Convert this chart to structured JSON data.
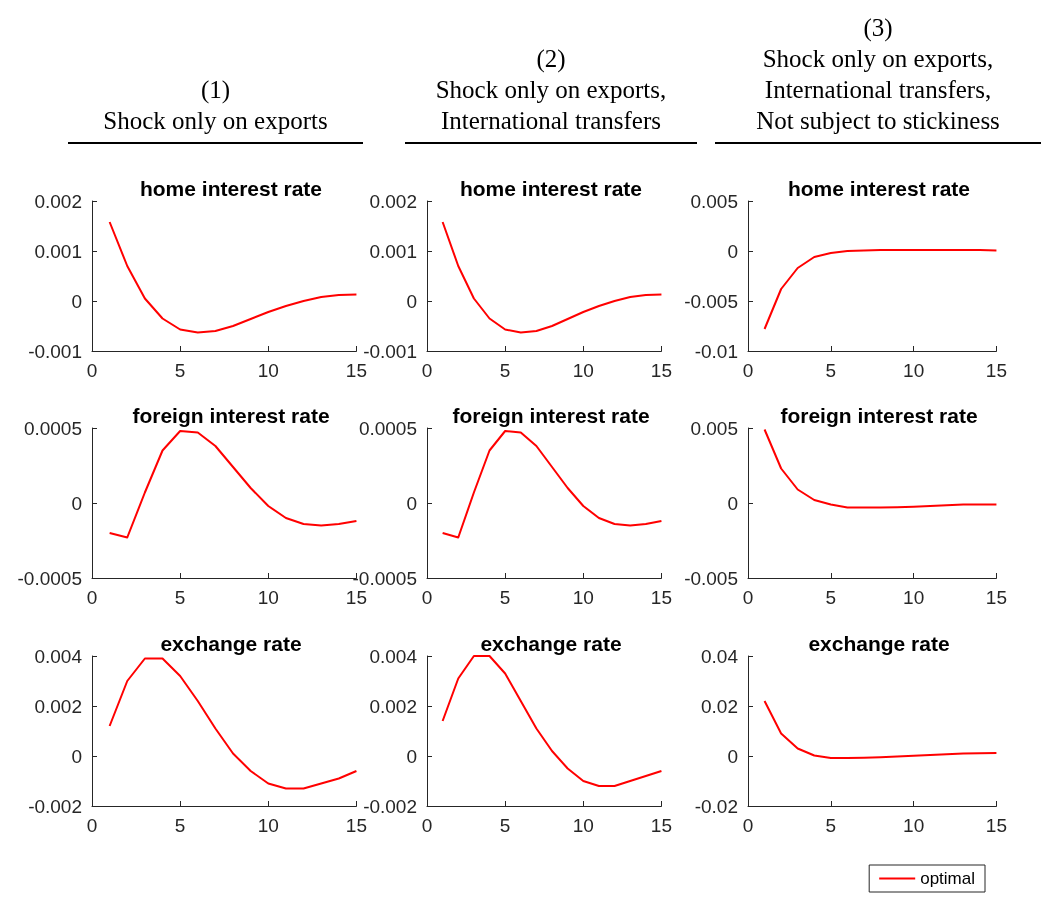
{
  "chart_data": [
    {
      "type": "line",
      "subtitle": "(1)\nShock only on exports",
      "title": "home interest rate",
      "x": [
        1,
        2,
        3,
        4,
        5,
        6,
        7,
        8,
        9,
        10,
        11,
        12,
        13,
        14,
        15
      ],
      "series": [
        {
          "color": "#ff0000",
          "values": [
            0.00158,
            0.0007,
            5e-05,
            -0.00035,
            -0.00057,
            -0.00063,
            -0.0006,
            -0.0005,
            -0.00036,
            -0.00022,
            -0.0001,
            0,
            8e-05,
            0.00012,
            0.00013
          ]
        }
      ],
      "xlim": [
        0,
        15
      ],
      "xticks": [
        0,
        5,
        10,
        15
      ],
      "ylim": [
        -0.001,
        0.002
      ],
      "yticks": [
        -0.001,
        0,
        0.001,
        0.002
      ],
      "grid": false,
      "marker": "none",
      "line_style": "solid",
      "legend": false
    },
    {
      "type": "line",
      "subtitle": "(2)\nShock only on exports,\nInternational transfers",
      "title": "home interest rate",
      "x": [
        1,
        2,
        3,
        4,
        5,
        6,
        7,
        8,
        9,
        10,
        11,
        12,
        13,
        14,
        15
      ],
      "series": [
        {
          "color": "#ff0000",
          "values": [
            0.00158,
            0.0007,
            5e-05,
            -0.00035,
            -0.00057,
            -0.00063,
            -0.0006,
            -0.0005,
            -0.00036,
            -0.00022,
            -0.0001,
            0,
            8e-05,
            0.00012,
            0.00013
          ]
        }
      ],
      "xlim": [
        0,
        15
      ],
      "xticks": [
        0,
        5,
        10,
        15
      ],
      "ylim": [
        -0.001,
        0.002
      ],
      "yticks": [
        -0.001,
        0,
        0.001,
        0.002
      ],
      "grid": false,
      "marker": "none",
      "line_style": "solid",
      "legend": false
    },
    {
      "type": "line",
      "subtitle": "(3)\nShock only on exports,\nInternational transfers,\nNot subject to stickiness",
      "title": "home interest rate",
      "x": [
        1,
        2,
        3,
        4,
        5,
        6,
        7,
        8,
        9,
        10,
        11,
        12,
        13,
        14,
        15
      ],
      "series": [
        {
          "color": "#ff0000",
          "values": [
            -0.0078,
            -0.0038,
            -0.0017,
            -0.0006,
            -0.0002,
            0,
            5e-05,
            0.0001,
            0.0001,
            0.0001,
            0.0001,
            0.0001,
            0.0001,
            0.0001,
            5e-05
          ]
        }
      ],
      "xlim": [
        0,
        15
      ],
      "xticks": [
        0,
        5,
        10,
        15
      ],
      "ylim": [
        -0.01,
        0.005
      ],
      "yticks": [
        -0.01,
        -0.005,
        0,
        0.005
      ],
      "grid": false,
      "marker": "none",
      "line_style": "solid",
      "legend": false
    },
    {
      "type": "line",
      "title": "foreign interest rate",
      "x": [
        1,
        2,
        3,
        4,
        5,
        6,
        7,
        8,
        9,
        10,
        11,
        12,
        13,
        14,
        15
      ],
      "series": [
        {
          "color": "#ff0000",
          "values": [
            -0.0002,
            -0.00023,
            7e-05,
            0.00035,
            0.00048,
            0.00047,
            0.00038,
            0.00024,
            0.0001,
            -2e-05,
            -0.0001,
            -0.00014,
            -0.00015,
            -0.00014,
            -0.00012
          ]
        }
      ],
      "xlim": [
        0,
        15
      ],
      "xticks": [
        0,
        5,
        10,
        15
      ],
      "ylim": [
        -0.0005,
        0.0005
      ],
      "yticks": [
        -0.0005,
        0,
        0.0005
      ],
      "grid": false,
      "marker": "none",
      "line_style": "solid",
      "legend": false
    },
    {
      "type": "line",
      "title": "foreign interest rate",
      "x": [
        1,
        2,
        3,
        4,
        5,
        6,
        7,
        8,
        9,
        10,
        11,
        12,
        13,
        14,
        15
      ],
      "series": [
        {
          "color": "#ff0000",
          "values": [
            -0.0002,
            -0.00023,
            7e-05,
            0.00035,
            0.00048,
            0.00047,
            0.00038,
            0.00024,
            0.0001,
            -2e-05,
            -0.0001,
            -0.00014,
            -0.00015,
            -0.00014,
            -0.00012
          ]
        }
      ],
      "xlim": [
        0,
        15
      ],
      "xticks": [
        0,
        5,
        10,
        15
      ],
      "ylim": [
        -0.0005,
        0.0005
      ],
      "yticks": [
        -0.0005,
        0,
        0.0005
      ],
      "grid": false,
      "marker": "none",
      "line_style": "solid",
      "legend": false
    },
    {
      "type": "line",
      "title": "foreign interest rate",
      "x": [
        1,
        2,
        3,
        4,
        5,
        6,
        7,
        8,
        9,
        10,
        11,
        12,
        13,
        14,
        15
      ],
      "series": [
        {
          "color": "#ff0000",
          "values": [
            0.0049,
            0.0023,
            0.0009,
            0.0002,
            -0.0001,
            -0.0003,
            -0.0003,
            -0.0003,
            -0.00028,
            -0.00025,
            -0.0002,
            -0.00015,
            -0.0001,
            -0.0001,
            -0.0001
          ]
        }
      ],
      "xlim": [
        0,
        15
      ],
      "xticks": [
        0,
        5,
        10,
        15
      ],
      "ylim": [
        -0.005,
        0.005
      ],
      "yticks": [
        -0.005,
        0,
        0.005
      ],
      "grid": false,
      "marker": "none",
      "line_style": "solid",
      "legend": false
    },
    {
      "type": "line",
      "title": "exchange rate",
      "x": [
        1,
        2,
        3,
        4,
        5,
        6,
        7,
        8,
        9,
        10,
        11,
        12,
        13,
        14,
        15
      ],
      "series": [
        {
          "color": "#ff0000",
          "values": [
            0.0012,
            0.003,
            0.0039,
            0.0039,
            0.0032,
            0.0022,
            0.0011,
            0.0001,
            -0.0006,
            -0.0011,
            -0.0013,
            -0.0013,
            -0.0011,
            -0.0009,
            -0.0006
          ]
        }
      ],
      "xlim": [
        0,
        15
      ],
      "xticks": [
        0,
        5,
        10,
        15
      ],
      "ylim": [
        -0.002,
        0.004
      ],
      "yticks": [
        -0.002,
        0,
        0.002,
        0.004
      ],
      "grid": false,
      "marker": "none",
      "line_style": "solid",
      "legend": false
    },
    {
      "type": "line",
      "title": "exchange rate",
      "x": [
        1,
        2,
        3,
        4,
        5,
        6,
        7,
        8,
        9,
        10,
        11,
        12,
        13,
        14,
        15
      ],
      "series": [
        {
          "color": "#ff0000",
          "values": [
            0.0014,
            0.0031,
            0.004,
            0.004,
            0.0033,
            0.0022,
            0.0011,
            0.0002,
            -0.0005,
            -0.001,
            -0.0012,
            -0.0012,
            -0.001,
            -0.0008,
            -0.0006
          ]
        }
      ],
      "xlim": [
        0,
        15
      ],
      "xticks": [
        0,
        5,
        10,
        15
      ],
      "ylim": [
        -0.002,
        0.004
      ],
      "yticks": [
        -0.002,
        0,
        0.002,
        0.004
      ],
      "grid": false,
      "marker": "none",
      "line_style": "solid",
      "legend": false
    },
    {
      "type": "line",
      "title": "exchange rate",
      "x": [
        1,
        2,
        3,
        4,
        5,
        6,
        7,
        8,
        9,
        10,
        11,
        12,
        13,
        14,
        15
      ],
      "series": [
        {
          "name": "optimal",
          "color": "#ff0000",
          "values": [
            0.022,
            0.009,
            0.003,
            0.0002,
            -0.0008,
            -0.0008,
            -0.0007,
            -0.0005,
            -0.0002,
            0.0001,
            0.0004,
            0.0007,
            0.001,
            0.0011,
            0.0012
          ]
        }
      ],
      "xlim": [
        0,
        15
      ],
      "xticks": [
        0,
        5,
        10,
        15
      ],
      "ylim": [
        -0.02,
        0.04
      ],
      "yticks": [
        -0.02,
        0,
        0.02,
        0.04
      ],
      "grid": false,
      "marker": "none",
      "line_style": "solid",
      "legend": "bottom right"
    }
  ]
}
